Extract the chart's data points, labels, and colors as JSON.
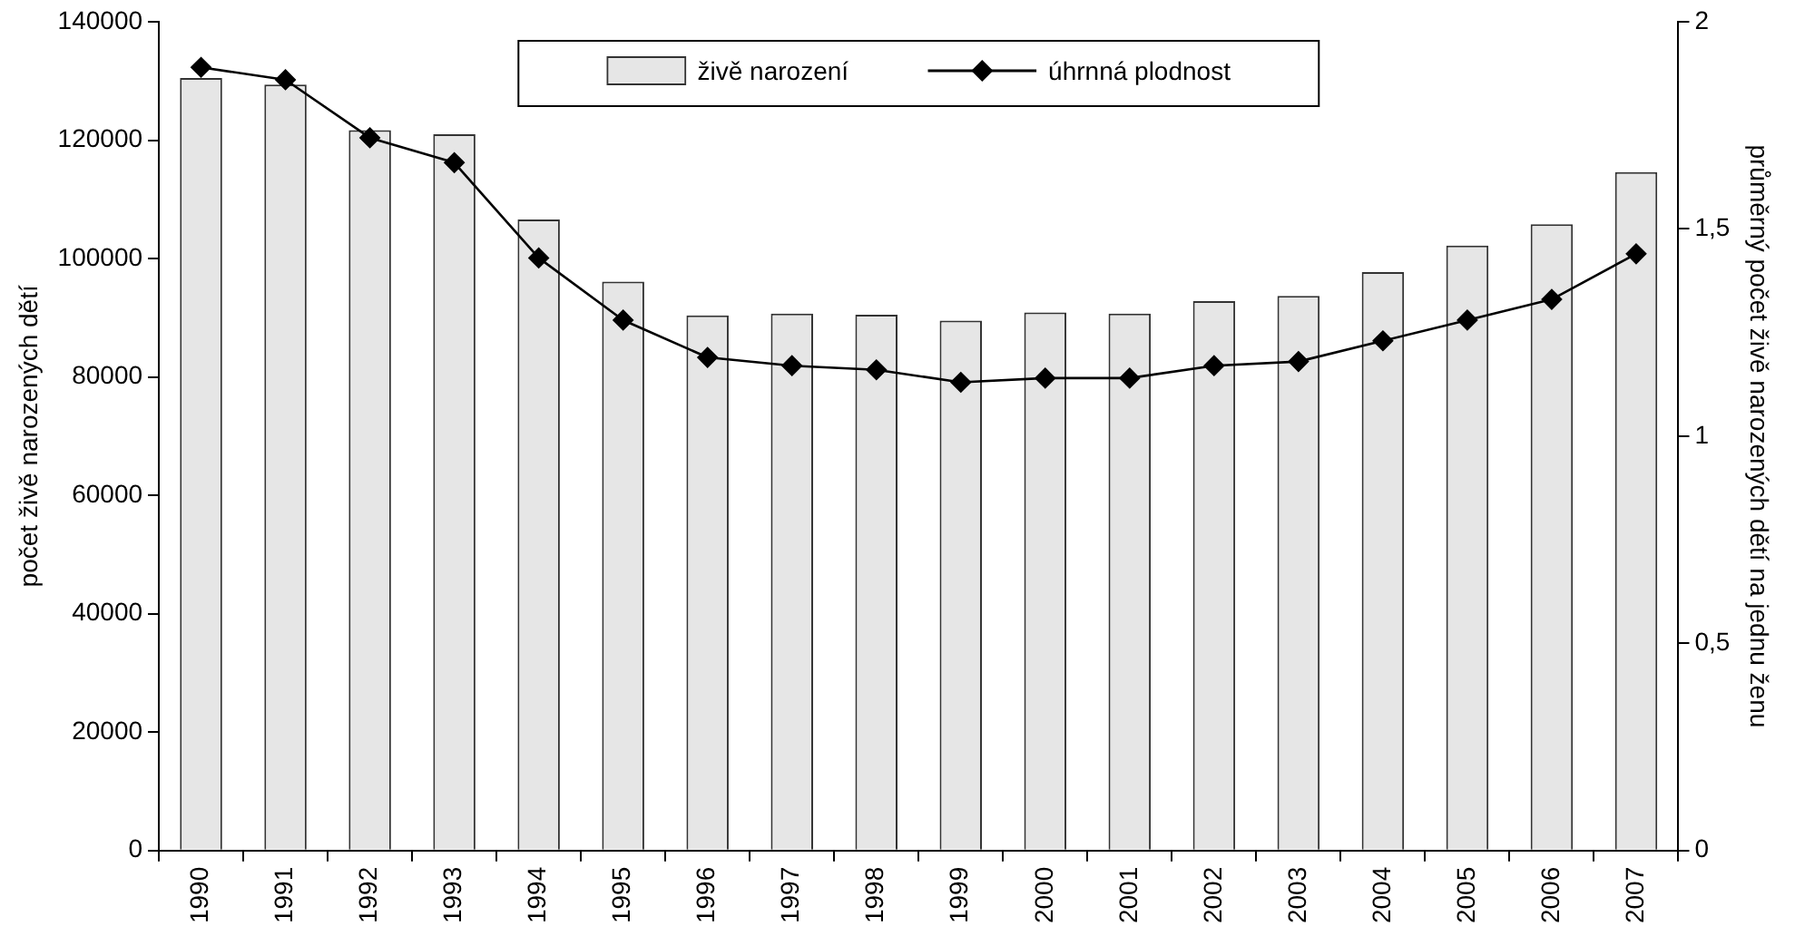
{
  "chart_data": {
    "type": "bar",
    "categories": [
      "1990",
      "1991",
      "1992",
      "1993",
      "1994",
      "1995",
      "1996",
      "1997",
      "1998",
      "1999",
      "2000",
      "2001",
      "2002",
      "2003",
      "2004",
      "2005",
      "2006",
      "2007"
    ],
    "series": [
      {
        "name": "živě narození",
        "color": "#e6e6e6",
        "values": [
          130500,
          129400,
          121700,
          121000,
          106600,
          96100,
          90400,
          90700,
          90500,
          89500,
          90900,
          90700,
          92800,
          93700,
          97700,
          102200,
          105800,
          114600
        ]
      },
      {
        "name": "úhrnná plodnost",
        "type": "line",
        "axis": "y2",
        "color": "#000000",
        "marker": "diamond",
        "values": [
          1.89,
          1.86,
          1.72,
          1.66,
          1.43,
          1.28,
          1.19,
          1.17,
          1.16,
          1.13,
          1.14,
          1.14,
          1.17,
          1.18,
          1.23,
          1.28,
          1.33,
          1.44
        ]
      }
    ],
    "ylabel": "počet živě narozených dětí",
    "y2label": "průměrný počet živě narozených dětí na jednu ženu",
    "ylim": [
      0,
      140000
    ],
    "yticks": [
      0,
      20000,
      40000,
      60000,
      80000,
      100000,
      120000,
      140000
    ],
    "y2lim": [
      0,
      2
    ],
    "y2ticks": [
      0,
      {
        "value": 0.5,
        "label": "0,5"
      },
      1,
      {
        "value": 1.5,
        "label": "1,5"
      },
      2
    ],
    "grid": false,
    "legend": "top"
  }
}
